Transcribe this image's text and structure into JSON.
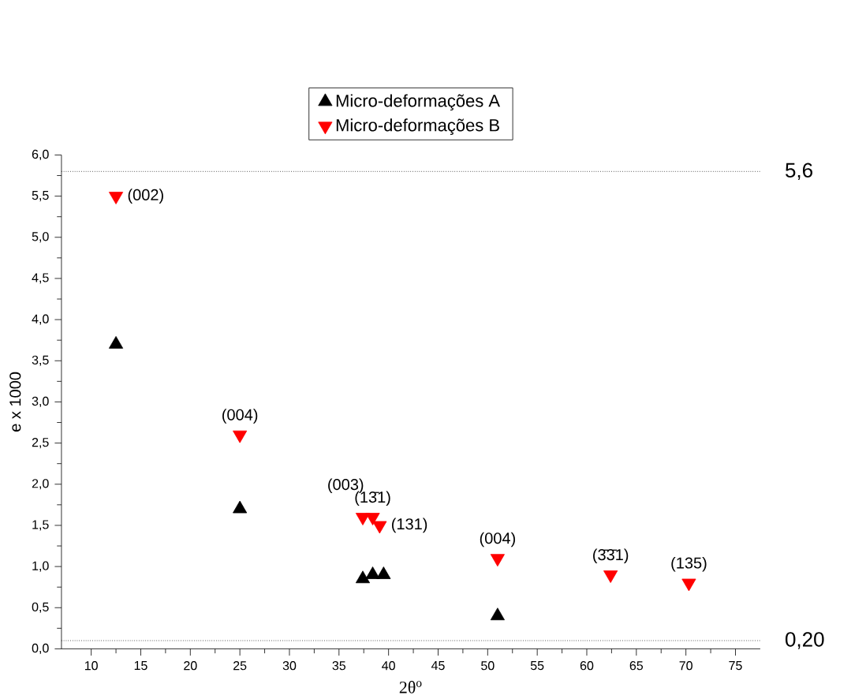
{
  "chart_data": {
    "type": "scatter",
    "xlabel": "2θ$^{o}$",
    "ylabel": "e x 1000",
    "xlim": [
      7,
      77.5
    ],
    "xticks": [
      10,
      15,
      20,
      25,
      30,
      35,
      40,
      45,
      50,
      55,
      60,
      65,
      70,
      75
    ],
    "ylim": [
      0,
      6
    ],
    "yticks": [
      {
        "value": 0,
        "label": "0,0"
      },
      {
        "value": 0.5,
        "label": "0,5"
      },
      {
        "value": 1,
        "label": "1,0"
      },
      {
        "value": 1.5,
        "label": "1,5"
      },
      {
        "value": 2,
        "label": "2,0"
      },
      {
        "value": 2.5,
        "label": "2,5"
      },
      {
        "value": 3,
        "label": "3,0"
      },
      {
        "value": 3.5,
        "label": "3,5"
      },
      {
        "value": 4,
        "label": "4,0"
      },
      {
        "value": 4.5,
        "label": "4,5"
      },
      {
        "value": 5,
        "label": "5,0"
      },
      {
        "value": 5.5,
        "label": "5,5"
      },
      {
        "value": 6,
        "label": "6,0"
      }
    ],
    "legend": "top",
    "grid": false,
    "series": [
      {
        "name": "Micro-deformações A",
        "color": "#000000",
        "marker": "triangle",
        "x": [
          12.5,
          25,
          37.4,
          38.4,
          39.5,
          51
        ],
        "values": [
          3.7,
          1.7,
          0.85,
          0.9,
          0.9,
          0.4
        ]
      },
      {
        "name": "Micro-deformações B",
        "color": "#ff0000",
        "marker": "triangle down",
        "x": [
          12.5,
          25,
          37.4,
          38.4,
          39.1,
          51,
          62.4,
          70.3
        ],
        "values": [
          5.5,
          2.6,
          1.6,
          1.6,
          1.5,
          1.1,
          0.9,
          0.8
        ]
      }
    ],
    "ref_lines": [
      {
        "axis": "y",
        "value": 5.8,
        "color": "#000000",
        "line_style": "dotted"
      },
      {
        "axis": "y",
        "value": 0.1,
        "color": "#000000",
        "line_style": "dotted"
      }
    ],
    "annotations": [
      "5,6",
      "0,20",
      {
        "text": "(002)",
        "x": 12.5,
        "y": 5.5
      },
      {
        "text": "(004)",
        "x": 25,
        "y": 2.6
      },
      {
        "text": "(003)",
        "x": 37.4,
        "y": 1.6
      },
      {
        "text": "(13̄1)",
        "x": 38.4,
        "y": 1.6
      },
      {
        "text": "(131)",
        "x": 39.1,
        "y": 1.5
      },
      {
        "text": "(004)",
        "x": 51,
        "y": 1.1
      },
      {
        "text": "(3̄3̄1)",
        "x": 62.4,
        "y": 0.9
      },
      {
        "text": "(135)",
        "x": 70.3,
        "y": 0.8
      }
    ]
  }
}
